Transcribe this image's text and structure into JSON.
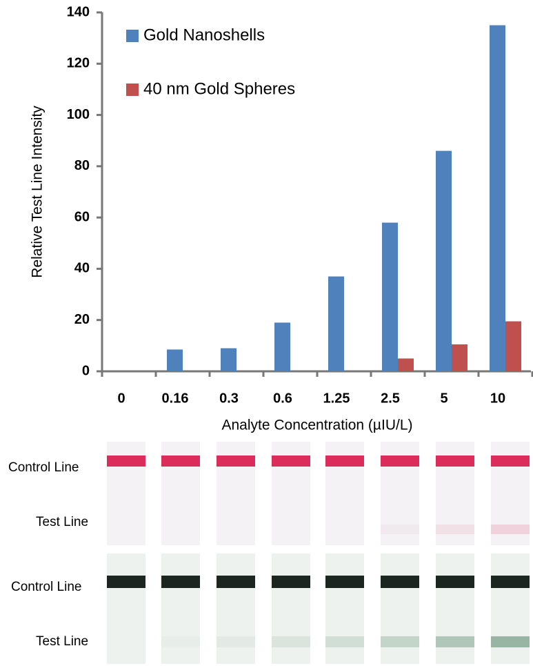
{
  "chart_data": {
    "type": "bar",
    "categories": [
      "0",
      "0.16",
      "0.3",
      "0.6",
      "1.25",
      "2.5",
      "5",
      "10"
    ],
    "series": [
      {
        "name": "Gold Nanoshells",
        "color": "#4f81bd",
        "values": [
          0,
          8.5,
          9,
          19,
          37,
          58,
          86,
          135
        ]
      },
      {
        "name": "40 nm Gold Spheres",
        "color": "#c0504d",
        "values": [
          0,
          0,
          0,
          0,
          0,
          5,
          10.5,
          19.5
        ]
      }
    ],
    "x_label": "Analyte Concentration (µIU/L)",
    "y_label": "Relative Test Line Intensity",
    "ylim": [
      0,
      140
    ],
    "yticks": [
      0,
      20,
      40,
      60,
      80,
      100,
      120,
      140
    ],
    "grid": false,
    "legend": "upper-left"
  },
  "strips": [
    {
      "control_label": "Control Line",
      "test_label": "Test Line"
    },
    {
      "control_label": "Control Line",
      "test_label": "Test Line"
    }
  ]
}
